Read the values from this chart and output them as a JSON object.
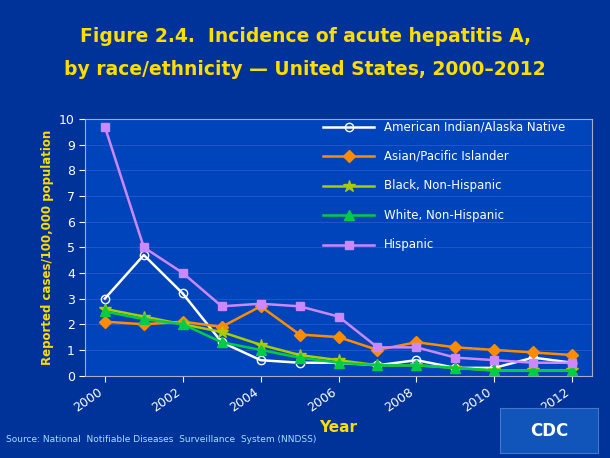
{
  "title_line1": "Figure 2.4.  Incidence of acute hepatitis A,",
  "title_line2": "by race/ethnicity — United States, 2000–2012",
  "xlabel": "Year",
  "ylabel": "Reported cases/100,000 population",
  "source": "Source: National  Notifiable Diseases  Surveillance  System (NNDSS)",
  "years": [
    2000,
    2001,
    2002,
    2003,
    2004,
    2005,
    2006,
    2007,
    2008,
    2009,
    2010,
    2011,
    2012
  ],
  "series": {
    "American Indian/Alaska Native": {
      "color": "#ffffff",
      "marker": "o",
      "marker_fill": "none",
      "data": [
        3.0,
        4.7,
        3.2,
        1.3,
        0.6,
        0.5,
        0.5,
        0.4,
        0.6,
        0.3,
        0.3,
        0.7,
        0.5
      ]
    },
    "Asian/Pacific Islander": {
      "color": "#ff8c00",
      "marker": "D",
      "marker_fill": "#ff8c00",
      "data": [
        2.1,
        2.0,
        2.1,
        1.9,
        2.7,
        1.6,
        1.5,
        1.0,
        1.3,
        1.1,
        1.0,
        0.9,
        0.8
      ]
    },
    "Black, Non-Hispanic": {
      "color": "#aacc00",
      "marker": "*",
      "marker_fill": "#aacc00",
      "data": [
        2.6,
        2.3,
        2.0,
        1.7,
        1.2,
        0.8,
        0.6,
        0.4,
        0.4,
        0.3,
        0.2,
        0.2,
        0.2
      ]
    },
    "White, Non-Hispanic": {
      "color": "#00cc44",
      "marker": "^",
      "marker_fill": "#00cc44",
      "data": [
        2.5,
        2.2,
        2.0,
        1.3,
        1.0,
        0.7,
        0.5,
        0.4,
        0.4,
        0.3,
        0.2,
        0.2,
        0.2
      ]
    },
    "Hispanic": {
      "color": "#cc88ff",
      "marker": "s",
      "marker_fill": "#cc88ff",
      "data": [
        9.7,
        5.0,
        4.0,
        2.7,
        2.8,
        2.7,
        2.3,
        1.1,
        1.1,
        0.7,
        0.6,
        0.5,
        0.5
      ]
    }
  },
  "ylim": [
    0,
    10
  ],
  "yticks": [
    0,
    1,
    2,
    3,
    4,
    5,
    6,
    7,
    8,
    9,
    10
  ],
  "xticks": [
    2000,
    2002,
    2004,
    2006,
    2008,
    2010,
    2012
  ],
  "bg_color": "#003399",
  "plot_bg_color": "#0044bb",
  "title_color": "#ffdd00",
  "axis_label_color": "#ffdd00",
  "tick_label_color": "#ffffff",
  "grid_color": "#2255cc",
  "legend_text_color": "#ffffff"
}
